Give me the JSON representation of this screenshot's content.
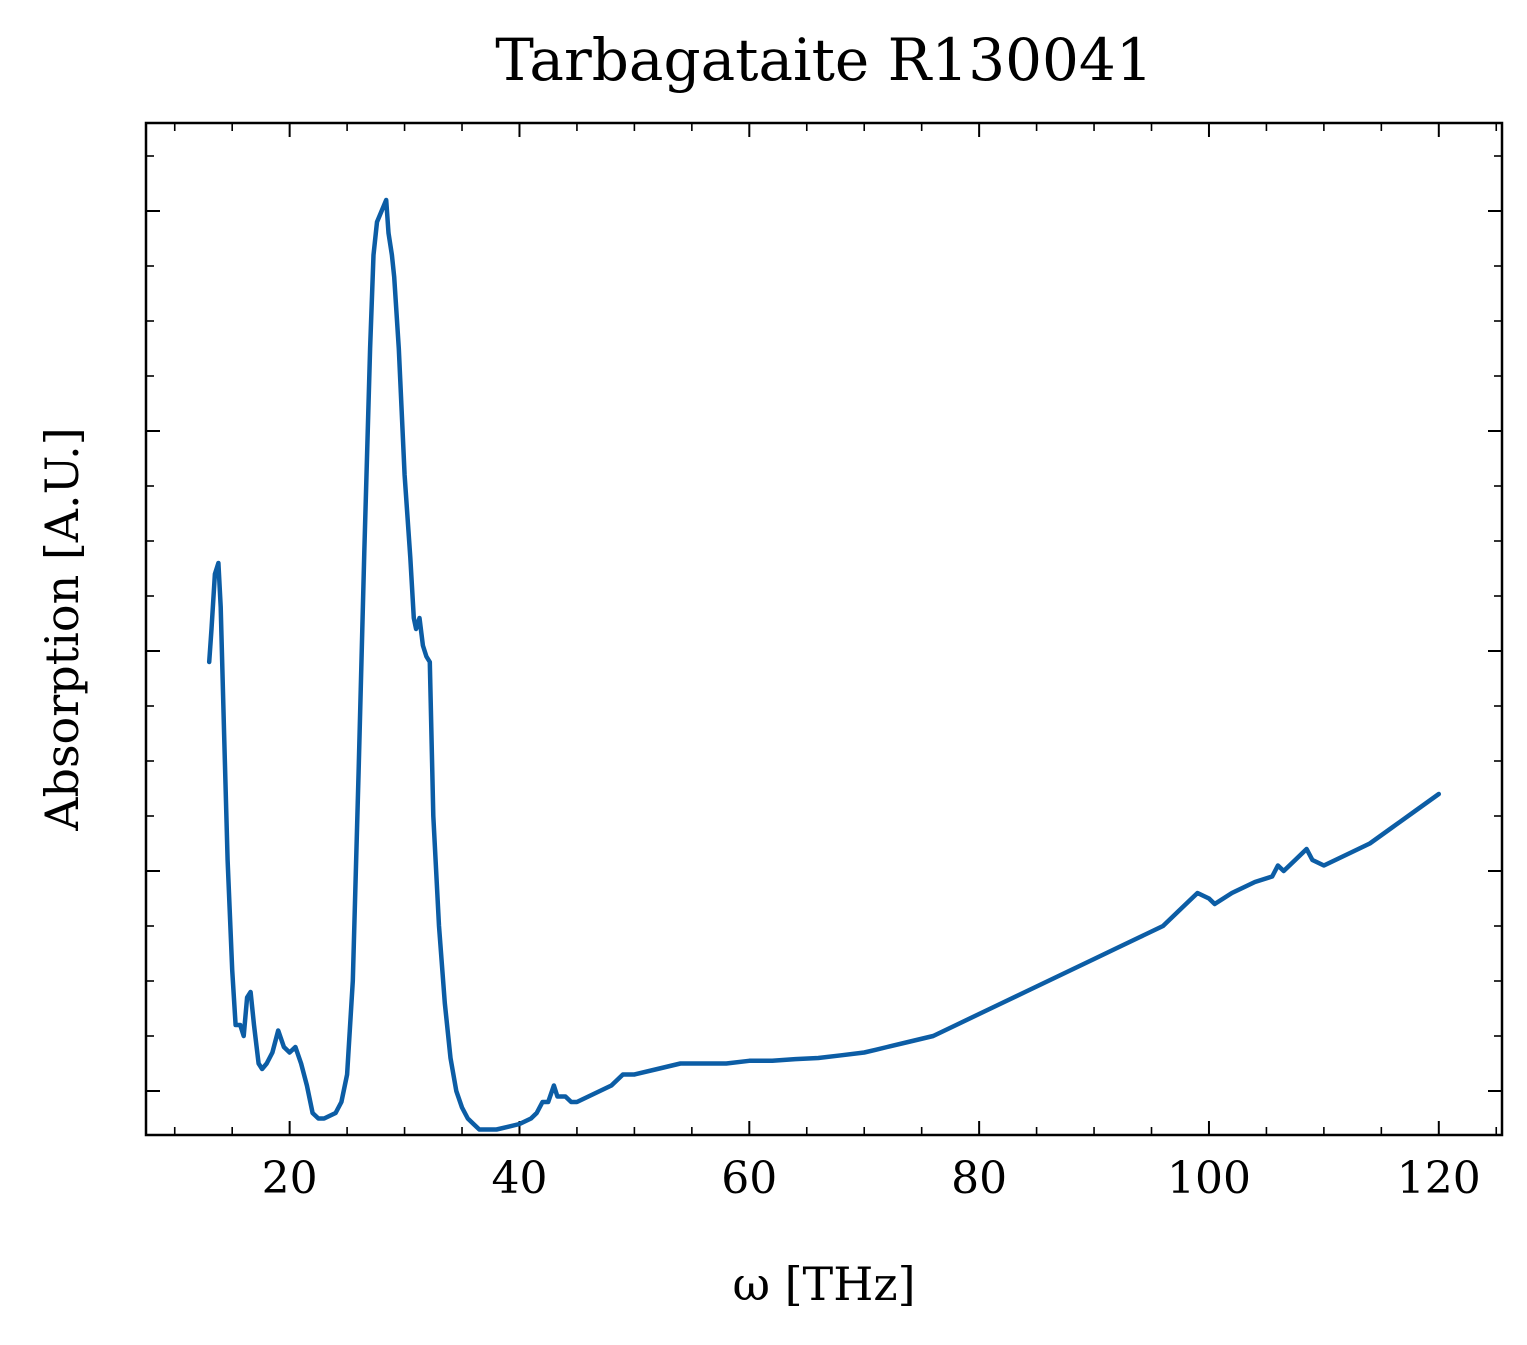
{
  "chart_data": {
    "type": "line",
    "title": "Tarbagataite R130041",
    "xlabel": "ω [THz]",
    "ylabel": "Absorption [A.U.]",
    "xlim": [
      7.5,
      125.5
    ],
    "ylim": [
      -0.08,
      1.76
    ],
    "x_ticks": [
      20,
      40,
      60,
      80,
      100,
      120
    ],
    "x_tick_labels": [
      "20",
      "40",
      "60",
      "80",
      "100",
      "120"
    ],
    "y_major_ticks": [
      0.0,
      0.4,
      0.8,
      1.2,
      1.6
    ],
    "y_tick_labels_visible": false,
    "grid": false,
    "legend": "none",
    "series": [
      {
        "color": "#0c5da5",
        "x": [
          13.0,
          13.2,
          13.5,
          13.8,
          14.0,
          14.3,
          14.6,
          15.0,
          15.3,
          15.7,
          16.0,
          16.3,
          16.6,
          16.9,
          17.3,
          17.6,
          18.0,
          18.5,
          19.0,
          19.5,
          20.0,
          20.5,
          21.0,
          21.5,
          22.0,
          22.5,
          23.0,
          24.0,
          24.5,
          25.0,
          25.5,
          26.0,
          26.5,
          27.0,
          27.3,
          27.6,
          28.0,
          28.4,
          28.6,
          28.9,
          29.1,
          29.5,
          30.0,
          30.5,
          30.8,
          31.0,
          31.3,
          31.6,
          31.9,
          32.2,
          32.5,
          33.0,
          33.5,
          34.0,
          34.5,
          35.0,
          35.5,
          36.0,
          36.5,
          37.0,
          37.5,
          38.0,
          39.0,
          40.0,
          41.0,
          41.5,
          42.0,
          42.5,
          43.0,
          43.3,
          43.6,
          44.0,
          44.5,
          45.0,
          46.0,
          47.0,
          48.0,
          49.0,
          50.0,
          52.0,
          54.0,
          56.0,
          58.0,
          60.0,
          62.0,
          64.0,
          66.0,
          68.0,
          70.0,
          71.0,
          72.0,
          74.0,
          76.0,
          78.0,
          80.0,
          82.0,
          84.0,
          86.0,
          88.0,
          90.0,
          92.0,
          94.0,
          96.0,
          97.5,
          98.5,
          99.0,
          100.0,
          100.5,
          102.0,
          104.0,
          105.5,
          106.0,
          106.5,
          107.5,
          108.0,
          108.5,
          109.0,
          110.0,
          112.0,
          114.0,
          116.0,
          118.0,
          120.0
        ],
        "y": [
          0.78,
          0.84,
          0.94,
          0.96,
          0.88,
          0.65,
          0.42,
          0.22,
          0.12,
          0.12,
          0.1,
          0.17,
          0.18,
          0.12,
          0.05,
          0.04,
          0.05,
          0.07,
          0.11,
          0.08,
          0.07,
          0.08,
          0.05,
          0.01,
          -0.04,
          -0.05,
          -0.05,
          -0.04,
          -0.02,
          0.03,
          0.2,
          0.58,
          0.98,
          1.35,
          1.52,
          1.58,
          1.6,
          1.62,
          1.56,
          1.52,
          1.48,
          1.35,
          1.12,
          0.97,
          0.86,
          0.84,
          0.86,
          0.81,
          0.79,
          0.78,
          0.5,
          0.3,
          0.16,
          0.06,
          0.0,
          -0.03,
          -0.05,
          -0.06,
          -0.07,
          -0.07,
          -0.07,
          -0.07,
          -0.065,
          -0.06,
          -0.05,
          -0.04,
          -0.02,
          -0.02,
          0.01,
          -0.01,
          -0.01,
          -0.01,
          -0.02,
          -0.02,
          -0.01,
          0.0,
          0.01,
          0.03,
          0.03,
          0.04,
          0.05,
          0.05,
          0.05,
          0.055,
          0.055,
          0.058,
          0.06,
          0.065,
          0.07,
          0.075,
          0.08,
          0.09,
          0.1,
          0.12,
          0.14,
          0.16,
          0.18,
          0.2,
          0.22,
          0.24,
          0.26,
          0.28,
          0.3,
          0.33,
          0.35,
          0.36,
          0.35,
          0.34,
          0.36,
          0.38,
          0.39,
          0.41,
          0.4,
          0.42,
          0.43,
          0.44,
          0.42,
          0.41,
          0.43,
          0.45,
          0.48,
          0.51,
          0.54
        ]
      }
    ]
  }
}
